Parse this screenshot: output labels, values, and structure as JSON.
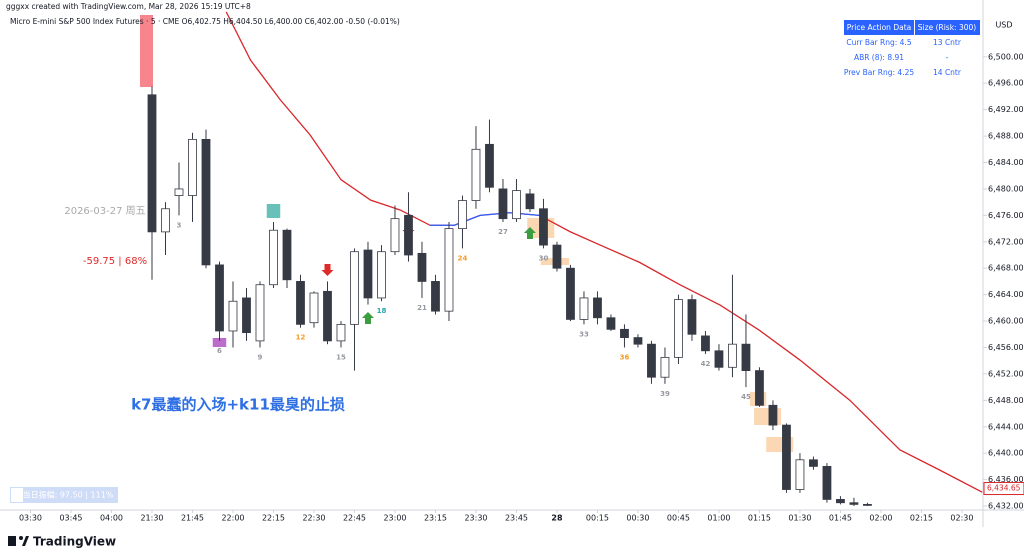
{
  "header": {
    "credit": "gggxx created with TradingView.com, Mar 28, 2026 15:19 UTC+8",
    "symbol": "Micro E-mini S&P 500 Index Futures · 5 · CME   O6,402.75  H6,404.50  L6,400.00  C6,402.00  -0.50 (-0.01%)",
    "currency": "USD"
  },
  "table": {
    "header": [
      "Price Action Data",
      "Size (Risk: 300)"
    ],
    "rows": [
      [
        "Curr Bar Rng: 4.5",
        "13 Cntr"
      ],
      [
        "ABR (8): 8.91",
        "-"
      ],
      [
        "Prev Bar Rng: 4.25",
        "14 Cntr"
      ]
    ]
  },
  "annotations": {
    "date": "2026-03-27 周五",
    "move": "-59.75 | 68%",
    "comment": "k7最蠢的入场+k11最臭的止损",
    "range": "当日振幅: 97.50 | 111%"
  },
  "footer": {
    "brand": "TradingView"
  },
  "chart_data": {
    "type": "candlestick",
    "ylim": [
      6431.4,
      6508.6
    ],
    "yticks": [
      {
        "value": 6432,
        "label": "6,432.00"
      },
      {
        "value": 6436,
        "label": "6,436.00"
      },
      {
        "value": 6440,
        "label": "6,440.00"
      },
      {
        "value": 6444,
        "label": "6,444.00"
      },
      {
        "value": 6448,
        "label": "6,448.00"
      },
      {
        "value": 6452,
        "label": "6,452.00"
      },
      {
        "value": 6456,
        "label": "6,456.00"
      },
      {
        "value": 6460,
        "label": "6,460.00"
      },
      {
        "value": 6464,
        "label": "6,464.00"
      },
      {
        "value": 6468,
        "label": "6,468.00"
      },
      {
        "value": 6472,
        "label": "6,472.00"
      },
      {
        "value": 6476,
        "label": "6,476.00"
      },
      {
        "value": 6480,
        "label": "6,480.00"
      },
      {
        "value": 6484,
        "label": "6,484.00"
      },
      {
        "value": 6488,
        "label": "6,488.00"
      },
      {
        "value": 6492,
        "label": "6,492.00"
      },
      {
        "value": 6496,
        "label": "6,496.00"
      },
      {
        "value": 6500,
        "label": "6,500.00"
      }
    ],
    "xlim": [
      -11.26,
      61.56
    ],
    "xticks": [
      {
        "value": -9,
        "label": "03:30"
      },
      {
        "value": -6,
        "label": "03:45"
      },
      {
        "value": -3,
        "label": "04:00"
      },
      {
        "value": 0,
        "label": "21:30"
      },
      {
        "value": 3,
        "label": "21:45"
      },
      {
        "value": 6,
        "label": "22:00"
      },
      {
        "value": 9,
        "label": "22:15"
      },
      {
        "value": 12,
        "label": "22:30"
      },
      {
        "value": 15,
        "label": "22:45"
      },
      {
        "value": 18,
        "label": "23:00"
      },
      {
        "value": 21,
        "label": "23:15"
      },
      {
        "value": 24,
        "label": "23:30"
      },
      {
        "value": 27,
        "label": "23:45"
      },
      {
        "value": 30,
        "label": "28"
      },
      {
        "value": 33,
        "label": "00:15"
      },
      {
        "value": 36,
        "label": "00:30"
      },
      {
        "value": 39,
        "label": "00:45"
      },
      {
        "value": 42,
        "label": "01:00"
      },
      {
        "value": 45,
        "label": "01:15"
      },
      {
        "value": 48,
        "label": "01:30"
      },
      {
        "value": 51,
        "label": "01:45"
      },
      {
        "value": 54,
        "label": "02:00"
      },
      {
        "value": 57,
        "label": "02:15"
      },
      {
        "value": 60,
        "label": "02:30"
      }
    ],
    "up_color": "#ffffff",
    "down_color": "#363a45",
    "wick_color": "#363a45",
    "open": [
      6494.25,
      6473.5,
      6479,
      6479,
      6487.5,
      6468.5,
      6458.5,
      6463.5,
      6457,
      6465.5,
      6473.75,
      6466,
      6459.75,
      6464.5,
      6457,
      6459.5,
      6470.75,
      6463.5,
      6470.5,
      6476,
      6470.25,
      6466,
      6461.5,
      6474,
      6478.25,
      6486.75,
      6480,
      6475.5,
      6479.25,
      6477,
      6471.5,
      6468,
      6460.25,
      6463.5,
      6460.5,
      6458.75,
      6457.5,
      6456.5,
      6451.5,
      6454.5,
      6463.25,
      6457.75,
      6455.5,
      6453,
      6456.5,
      6452.5,
      6447.25,
      6444.25,
      6434.5,
      6439,
      6438,
      6433,
      6432.5,
      6432.25
    ],
    "high": [
      6495.5,
      6478,
      6484,
      6488.5,
      6489,
      6469,
      6466,
      6465,
      6466,
      6475,
      6474,
      6467,
      6464.5,
      6466,
      6460,
      6471,
      6472,
      6471.5,
      6477.5,
      6479.5,
      6472,
      6467,
      6475,
      6479,
      6489.5,
      6490.5,
      6481.5,
      6481.5,
      6480,
      6478.5,
      6472,
      6468.5,
      6464.5,
      6464.5,
      6461,
      6459.5,
      6458,
      6457,
      6456,
      6464,
      6464,
      6458.5,
      6456.5,
      6467,
      6461,
      6453,
      6448,
      6444.5,
      6440,
      6439.5,
      6438.5,
      6433.5,
      6433.25,
      6432.5
    ],
    "low": [
      6466.25,
      6470,
      6476,
      6475,
      6468,
      6457,
      6456,
      6457,
      6456,
      6465,
      6465,
      6459,
      6459,
      6456.5,
      6456,
      6452.5,
      6462.5,
      6463,
      6470,
      6469,
      6463.5,
      6461,
      6460,
      6471,
      6477,
      6479.5,
      6475,
      6475,
      6476.5,
      6471,
      6467.5,
      6460,
      6459.5,
      6459.5,
      6458.5,
      6456,
      6456,
      6450.5,
      6450.5,
      6453.5,
      6457,
      6455,
      6452.5,
      6451.5,
      6450,
      6447,
      6443.5,
      6434,
      6434,
      6437.5,
      6432.5,
      6432.25,
      6432,
      6432
    ],
    "close": [
      6473.5,
      6477,
      6480,
      6487.5,
      6468.5,
      6458.5,
      6463,
      6458.25,
      6465.5,
      6473.75,
      6466.25,
      6459.5,
      6464.25,
      6457,
      6459.5,
      6470.5,
      6463.5,
      6470.5,
      6475.5,
      6470,
      6466,
      6461.5,
      6474,
      6478.25,
      6486,
      6480.25,
      6475.5,
      6479.75,
      6477,
      6471.5,
      6468,
      6460.25,
      6463.5,
      6460.5,
      6458.75,
      6457.5,
      6456.5,
      6451.5,
      6454.5,
      6463.25,
      6458,
      6455.5,
      6453,
      6456.5,
      6452.5,
      6447.25,
      6444.25,
      6434.5,
      6439,
      6438,
      6433,
      6432.5,
      6432.25,
      6432.25
    ],
    "lines": [
      {
        "color": "#d9262a",
        "x": [
          5.5,
          7.3,
          9.5,
          11.7,
          14,
          16.2,
          18.4,
          20.6,
          22.4,
          24.3,
          26.5,
          28.7,
          31,
          33.2,
          36.1,
          39.1,
          42.1,
          45,
          48,
          51.7,
          55.4,
          58.4,
          61.5
        ],
        "values": [
          6506.8,
          6499.5,
          6493.5,
          6488.2,
          6481.4,
          6478.3,
          6476.8,
          6474.5,
          6474.5,
          6476,
          6476.4,
          6476,
          6473.5,
          6471.5,
          6468.9,
          6465.5,
          6462.4,
          6458.6,
          6454.1,
          6448,
          6440.5,
          6437.4,
          6434.1
        ]
      },
      {
        "color": "#2962ff",
        "x": [
          20.6,
          22.4,
          24.3,
          26.5,
          28.7
        ],
        "values": [
          6474.5,
          6474.5,
          6476,
          6476.4,
          6476
        ]
      }
    ],
    "bar_labels": [
      {
        "text": "3",
        "color": "#9598a1"
      },
      {
        "text": "6",
        "color": "#9598a1"
      },
      {
        "text": "9",
        "color": "#9598a1"
      },
      {
        "text": "12",
        "color": "#f59a23"
      },
      {
        "text": "15",
        "color": "#9598a1"
      },
      {
        "text": "18",
        "color": "#22a6b3"
      },
      {
        "text": "21",
        "color": "#9598a1"
      },
      {
        "text": "24",
        "color": "#f59a23"
      },
      {
        "text": "27",
        "color": "#9598a1"
      },
      {
        "text": "30",
        "color": "#9598a1"
      },
      {
        "text": "33",
        "color": "#9598a1"
      },
      {
        "text": "36",
        "color": "#f59a23"
      },
      {
        "text": "39",
        "color": "#9598a1"
      },
      {
        "text": "42",
        "color": "#9598a1"
      },
      {
        "text": "45",
        "color": "#9598a1"
      }
    ],
    "last_price": {
      "value": 6434.65,
      "label": "6,434.65",
      "color": "#d9262a"
    }
  }
}
